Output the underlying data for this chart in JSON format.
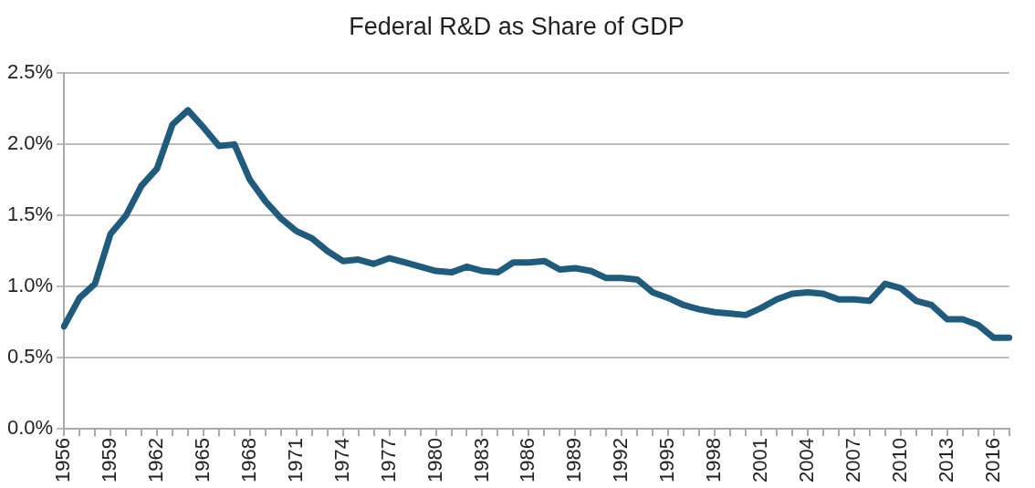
{
  "chart_data": {
    "type": "line",
    "title": "Federal R&D as Share of GDP",
    "categories": [
      "1956",
      null,
      null,
      "1959",
      null,
      null,
      "1962",
      null,
      null,
      "1965",
      null,
      null,
      "1968",
      null,
      null,
      "1971",
      null,
      null,
      "1974",
      null,
      null,
      "1977",
      null,
      null,
      "1980",
      null,
      null,
      "1983",
      null,
      null,
      "1986",
      null,
      null,
      "1989",
      null,
      null,
      "1992",
      null,
      null,
      "1995",
      null,
      null,
      "1998",
      null,
      null,
      "2001",
      null,
      null,
      "2004",
      null,
      null,
      "2007",
      null,
      null,
      "2010",
      null,
      null,
      "2013",
      null,
      null,
      "2016",
      null
    ],
    "series": [
      {
        "color": "#1f5b7c",
        "values": [
          0.72,
          0.92,
          1.02,
          1.37,
          1.5,
          1.71,
          1.83,
          2.14,
          2.24,
          2.12,
          1.99,
          2.0,
          1.75,
          1.6,
          1.48,
          1.39,
          1.34,
          1.25,
          1.18,
          1.19,
          1.16,
          1.2,
          1.17,
          1.14,
          1.11,
          1.1,
          1.14,
          1.11,
          1.1,
          1.17,
          1.17,
          1.18,
          1.12,
          1.13,
          1.11,
          1.06,
          1.06,
          1.05,
          0.96,
          0.92,
          0.87,
          0.84,
          0.82,
          0.81,
          0.8,
          0.85,
          0.91,
          0.95,
          0.96,
          0.95,
          0.91,
          0.91,
          0.9,
          1.02,
          0.99,
          0.9,
          0.87,
          0.77,
          0.77,
          0.73,
          0.64,
          0.64
        ]
      }
    ],
    "ylim": [
      0,
      2.5
    ],
    "yticks": [
      {
        "value": 0,
        "label": "0.0%"
      },
      {
        "value": 0.5,
        "label": "0.5%"
      },
      {
        "value": 1,
        "label": "1.0%"
      },
      {
        "value": 1.5,
        "label": "1.5%"
      },
      {
        "value": 2,
        "label": "2.0%"
      },
      {
        "value": 2.5,
        "label": "2.5%"
      }
    ],
    "grid": "y",
    "legend": false,
    "marker": "none",
    "line_style": "solid"
  }
}
